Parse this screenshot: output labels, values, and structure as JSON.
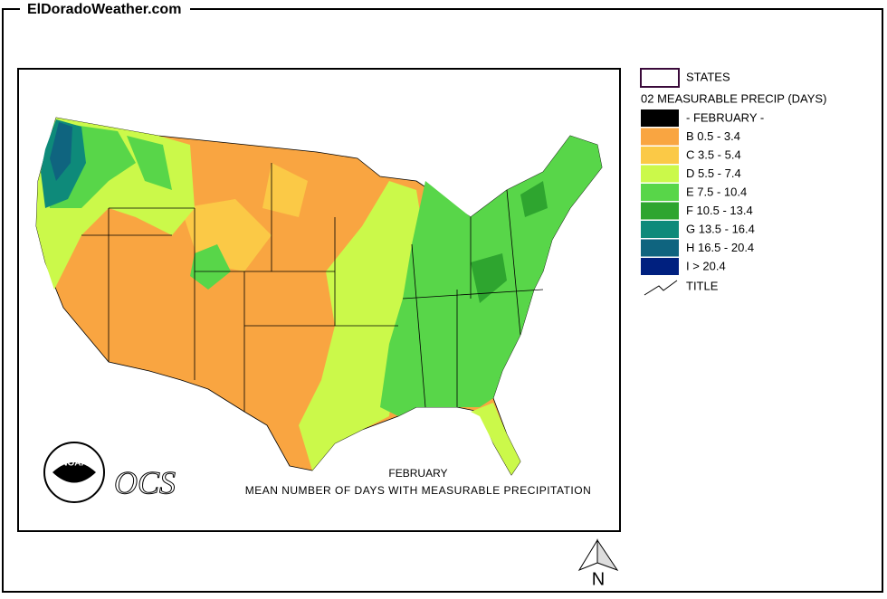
{
  "header": {
    "site": "ElDoradoWeather.com"
  },
  "legend": {
    "states": "STATES",
    "heading": "02 MEASURABLE PRECIP (DAYS)",
    "items": [
      {
        "label": "- FEBRUARY -",
        "color": "#000000"
      },
      {
        "label": "B 0.5 - 3.4",
        "color": "#f9a541"
      },
      {
        "label": "C 3.5 - 5.4",
        "color": "#fbc946"
      },
      {
        "label": "D 5.5 - 7.4",
        "color": "#cbf94a"
      },
      {
        "label": "E 7.5 - 10.4",
        "color": "#58d649"
      },
      {
        "label": "F 10.5 - 13.4",
        "color": "#2ea52f"
      },
      {
        "label": "G 13.5 - 16.4",
        "color": "#0e8a7a"
      },
      {
        "label": "H 16.5 - 20.4",
        "color": "#0f647f"
      },
      {
        "label": "I > 20.4",
        "color": "#00207f"
      }
    ],
    "title_item": "TITLE"
  },
  "map": {
    "logos": {
      "noaa": "NOAA",
      "ocs": "OCS"
    },
    "caption": {
      "month": "FEBRUARY",
      "text": "MEAN NUMBER OF DAYS WITH MEASURABLE PRECIPITATION"
    }
  },
  "compass": "N"
}
